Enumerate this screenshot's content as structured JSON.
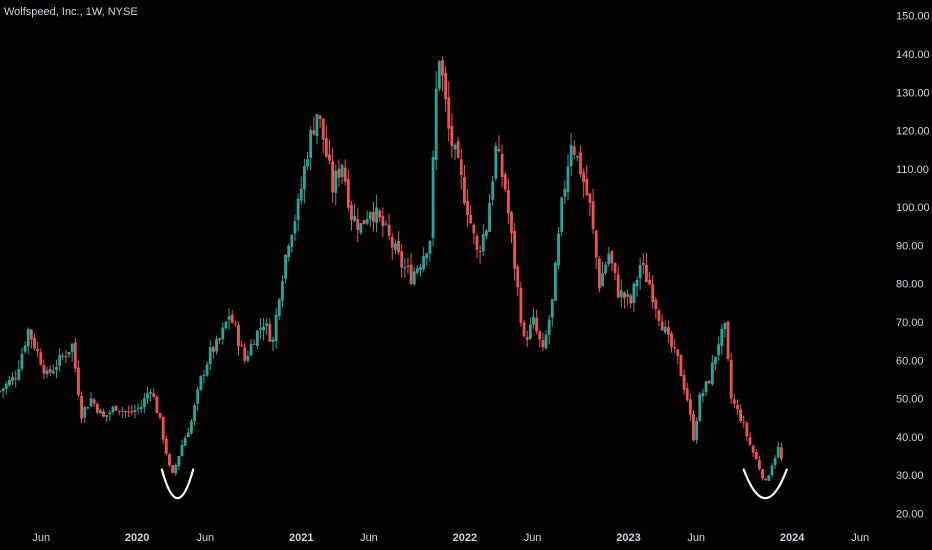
{
  "title": "Wolfspeed, Inc., 1W, NYSE",
  "colors": {
    "up": "#26a69a",
    "down": "#ef5350",
    "background": "#000000",
    "text": "#d1d4dc",
    "annotation": "#ffffff"
  },
  "chart_data": {
    "type": "candlestick",
    "title": "Wolfspeed, Inc., 1W, NYSE",
    "ylim": [
      17,
      152
    ],
    "y_ticks": [
      20,
      30,
      40,
      50,
      60,
      70,
      80,
      90,
      100,
      110,
      120,
      130,
      140,
      150
    ],
    "y_tick_labels": [
      "20.00",
      "30.00",
      "40.00",
      "50.00",
      "60.00",
      "70.00",
      "80.00",
      "90.00",
      "100.00",
      "110.00",
      "120.00",
      "130.00",
      "140.00",
      "150.00"
    ],
    "x_range": [
      "2019-03-01",
      "2024-07-15"
    ],
    "x_ticks": [
      {
        "label": "Jun",
        "date": "2019-06-01",
        "year": false
      },
      {
        "label": "2020",
        "date": "2020-01-01",
        "year": true
      },
      {
        "label": "Jun",
        "date": "2020-06-01",
        "year": false
      },
      {
        "label": "2021",
        "date": "2021-01-01",
        "year": true
      },
      {
        "label": "Jun",
        "date": "2021-06-01",
        "year": false
      },
      {
        "label": "2022",
        "date": "2022-01-01",
        "year": true
      },
      {
        "label": "Jun",
        "date": "2022-06-01",
        "year": false
      },
      {
        "label": "2023",
        "date": "2023-01-01",
        "year": true
      },
      {
        "label": "Jun",
        "date": "2023-06-01",
        "year": false
      },
      {
        "label": "2024",
        "date": "2024-01-01",
        "year": true
      },
      {
        "label": "Jun",
        "date": "2024-06-01",
        "year": false
      }
    ],
    "close_path": [
      [
        "2019-03-01",
        52
      ],
      [
        "2019-04-05",
        56
      ],
      [
        "2019-05-03",
        68
      ],
      [
        "2019-05-24",
        62
      ],
      [
        "2019-06-14",
        56
      ],
      [
        "2019-07-12",
        60
      ],
      [
        "2019-08-09",
        64
      ],
      [
        "2019-08-30",
        46
      ],
      [
        "2019-09-20",
        50
      ],
      [
        "2019-10-18",
        45
      ],
      [
        "2019-11-15",
        48
      ],
      [
        "2019-12-13",
        46
      ],
      [
        "2020-01-10",
        48
      ],
      [
        "2020-01-31",
        53
      ],
      [
        "2020-02-21",
        44
      ],
      [
        "2020-03-13",
        32
      ],
      [
        "2020-03-20",
        30
      ],
      [
        "2020-04-10",
        38
      ],
      [
        "2020-05-01",
        44
      ],
      [
        "2020-05-22",
        55
      ],
      [
        "2020-06-12",
        62
      ],
      [
        "2020-07-03",
        65
      ],
      [
        "2020-07-24",
        72
      ],
      [
        "2020-08-07",
        68
      ],
      [
        "2020-08-28",
        60
      ],
      [
        "2020-09-18",
        66
      ],
      [
        "2020-10-09",
        70
      ],
      [
        "2020-10-30",
        65
      ],
      [
        "2020-11-13",
        78
      ],
      [
        "2020-12-04",
        92
      ],
      [
        "2020-12-25",
        100
      ],
      [
        "2021-01-15",
        115
      ],
      [
        "2021-02-05",
        125
      ],
      [
        "2021-02-19",
        118
      ],
      [
        "2021-03-12",
        105
      ],
      [
        "2021-04-02",
        112
      ],
      [
        "2021-04-23",
        98
      ],
      [
        "2021-05-14",
        95
      ],
      [
        "2021-06-04",
        100
      ],
      [
        "2021-07-02",
        95
      ],
      [
        "2021-07-23",
        90
      ],
      [
        "2021-08-13",
        85
      ],
      [
        "2021-09-03",
        82
      ],
      [
        "2021-09-24",
        86
      ],
      [
        "2021-10-15",
        92
      ],
      [
        "2021-10-29",
        130
      ],
      [
        "2021-11-05",
        140
      ],
      [
        "2021-11-26",
        120
      ],
      [
        "2021-12-17",
        110
      ],
      [
        "2022-01-07",
        100
      ],
      [
        "2022-01-28",
        88
      ],
      [
        "2022-02-18",
        95
      ],
      [
        "2022-03-11",
        115
      ],
      [
        "2022-04-01",
        105
      ],
      [
        "2022-04-22",
        85
      ],
      [
        "2022-05-13",
        65
      ],
      [
        "2022-06-03",
        70
      ],
      [
        "2022-06-24",
        62
      ],
      [
        "2022-07-15",
        75
      ],
      [
        "2022-08-05",
        100
      ],
      [
        "2022-08-26",
        118
      ],
      [
        "2022-09-16",
        110
      ],
      [
        "2022-10-07",
        100
      ],
      [
        "2022-10-28",
        80
      ],
      [
        "2022-11-18",
        88
      ],
      [
        "2022-12-09",
        78
      ],
      [
        "2023-01-06",
        75
      ],
      [
        "2023-01-27",
        85
      ],
      [
        "2023-02-17",
        80
      ],
      [
        "2023-03-10",
        72
      ],
      [
        "2023-03-31",
        65
      ],
      [
        "2023-04-21",
        60
      ],
      [
        "2023-05-12",
        50
      ],
      [
        "2023-05-26",
        40
      ],
      [
        "2023-06-09",
        50
      ],
      [
        "2023-06-30",
        55
      ],
      [
        "2023-07-21",
        65
      ],
      [
        "2023-08-04",
        68
      ],
      [
        "2023-08-18",
        50
      ],
      [
        "2023-09-08",
        45
      ],
      [
        "2023-09-29",
        38
      ],
      [
        "2023-10-20",
        32
      ],
      [
        "2023-11-03",
        28
      ],
      [
        "2023-11-17",
        33
      ],
      [
        "2023-12-01",
        37
      ],
      [
        "2023-12-08",
        34
      ]
    ],
    "annotations": [
      {
        "type": "arc",
        "label": "",
        "date_start": "2020-02-25",
        "date_end": "2020-05-05",
        "y_top": 31.5,
        "y_bottom": 24
      },
      {
        "type": "arc",
        "label": "",
        "date_start": "2023-09-15",
        "date_end": "2023-12-20",
        "y_top": 31.5,
        "y_bottom": 24
      }
    ]
  }
}
